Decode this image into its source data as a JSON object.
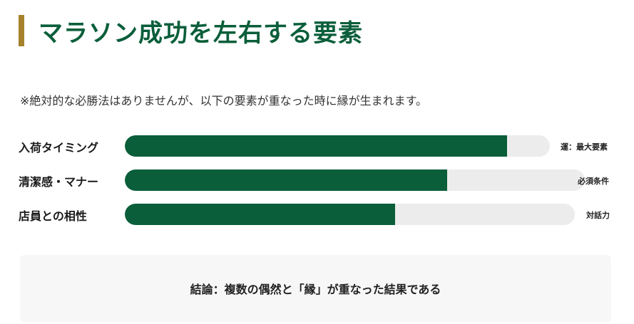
{
  "title": "マラソン成功を左右する要素",
  "note": "※絶対的な必勝法はありませんが、以下の要素が重なった時に縁が生まれます。",
  "bars": [
    {
      "label": "入荷タイミング",
      "value": 90,
      "note": "運：最大要素"
    },
    {
      "label": "清潔感・マナー",
      "value": 70,
      "note": "必須条件"
    },
    {
      "label": "店員との相性",
      "value": 60,
      "note": "対話力"
    }
  ],
  "conclusion": "結論：複数の偶然と「縁」が重なった結果である",
  "colors": {
    "accent": "#a5822b",
    "brand_green": "#0a5e3a",
    "track": "#ececec",
    "conclusion_bg": "#f7f7f7"
  }
}
